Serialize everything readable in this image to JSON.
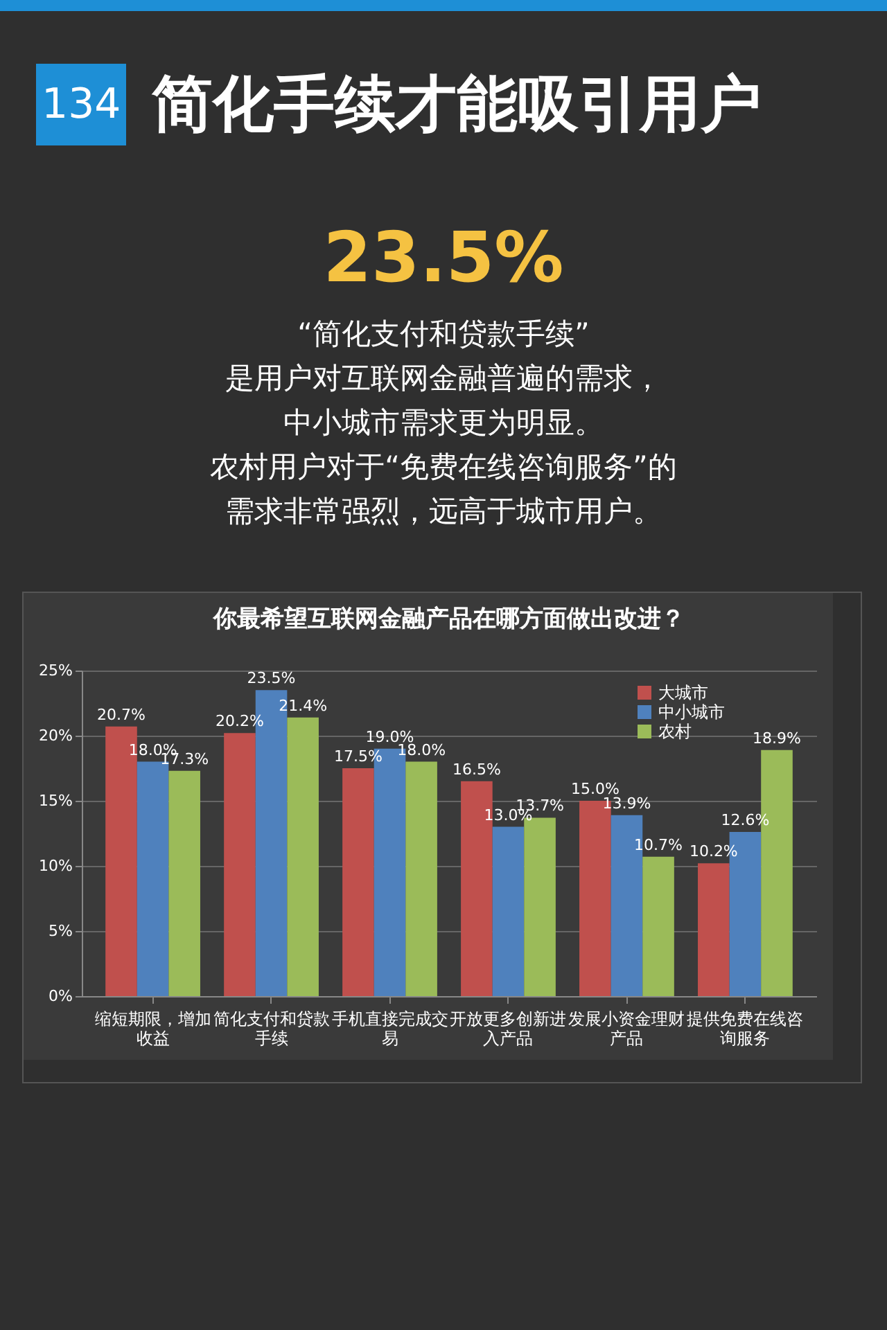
{
  "chart_data": {
    "type": "bar",
    "title": "简化手续才能吸引用户",
    "subtitle": "你最希望互联网金融产品在哪方面做出改进？",
    "annotations": [
      "134",
      "23.5%",
      "“简化支付和贷款手续”",
      "是用户对互联网金融普遍的需求，",
      "中小城市需求更为明显。",
      "农村用户对于“免费在线咨询服务”的",
      "需求非常强烈，远高于城市用户。"
    ],
    "categories": [
      "缩短期限，增加收益",
      "简化支付和贷款手续",
      "手机直接完成交易",
      "开放更多创新进入产品",
      "发展小资金理财产品",
      "提供免费在线咨询服务"
    ],
    "series": [
      {
        "name": "大城市",
        "color": "#c0504d",
        "values": [
          20.7,
          20.2,
          17.5,
          16.5,
          15.0,
          10.2
        ],
        "value_labels": [
          "20.7%",
          "20.2%",
          "17.5%",
          "16.5%",
          "15.0%",
          "10.2%"
        ]
      },
      {
        "name": "中小城市",
        "color": "#4f81bd",
        "values": [
          18.0,
          23.5,
          19.0,
          13.0,
          13.9,
          12.6
        ],
        "value_labels": [
          "18.0%",
          "23.5%",
          "19.0%",
          "13.0%",
          "13.9%",
          "12.6%"
        ]
      },
      {
        "name": "农村",
        "color": "#9bbb59",
        "values": [
          17.3,
          21.4,
          18.0,
          13.7,
          10.7,
          18.9
        ],
        "value_labels": [
          "17.3%",
          "21.4%",
          "18.0%",
          "13.7%",
          "10.7%",
          "18.9%"
        ]
      }
    ],
    "ylim": [
      0,
      25
    ],
    "yticks": [
      {
        "value": 0,
        "label": "0%"
      },
      {
        "value": 5,
        "label": "5%"
      },
      {
        "value": 10,
        "label": "10%"
      },
      {
        "value": 15,
        "label": "15%"
      },
      {
        "value": 20,
        "label": "20%"
      },
      {
        "value": 25,
        "label": "25%"
      }
    ],
    "grid": "y",
    "legend": "top right"
  }
}
